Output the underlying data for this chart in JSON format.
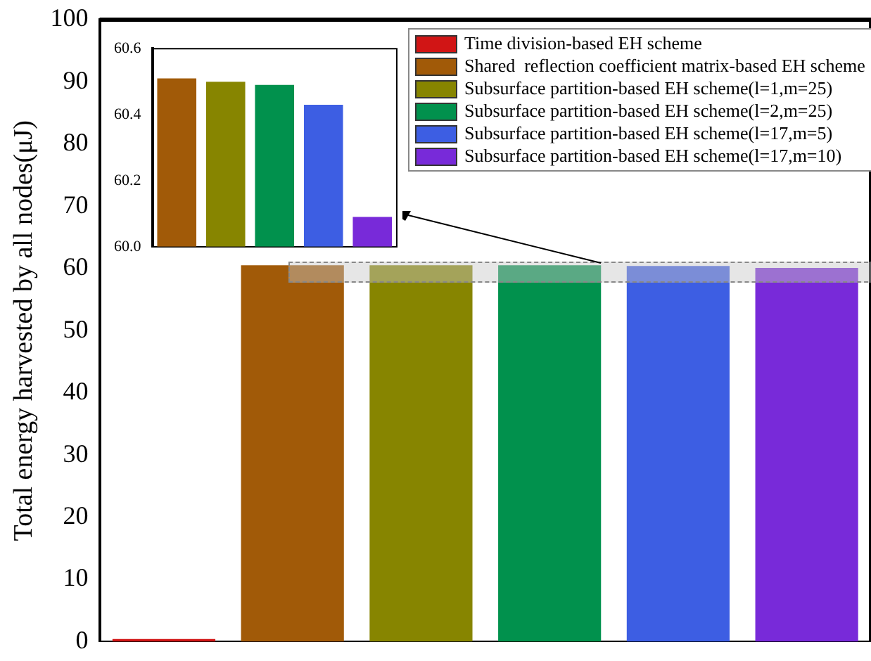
{
  "chart_data": [
    {
      "type": "bar",
      "ylabel": "Total energy harvested by all nodes(μJ)",
      "categories": [
        null,
        null,
        null,
        null,
        null,
        null
      ],
      "series": [
        {
          "name": "Time division-based EH scheme",
          "color": "#d11515",
          "values": [
            0.4,
            null,
            null,
            null,
            null,
            null
          ]
        },
        {
          "name": "Shared  reflection coefficient matrix-based EH scheme",
          "color": "#a15a08",
          "values": [
            null,
            60.5,
            null,
            null,
            null,
            null
          ]
        },
        {
          "name": "Subsurface partition-based EH scheme(l=1,m=25)",
          "color": "#878500",
          "values": [
            null,
            null,
            60.5,
            null,
            null,
            null
          ]
        },
        {
          "name": "Subsurface partition-based EH scheme(l=2,m=25)",
          "color": "#01914d",
          "values": [
            null,
            null,
            null,
            60.5,
            null,
            null
          ]
        },
        {
          "name": "Subsurface partition-based EH scheme(l=17,m=5)",
          "color": "#3d5ee3",
          "values": [
            null,
            null,
            null,
            null,
            60.4,
            null
          ]
        },
        {
          "name": "Subsurface partition-based EH scheme(l=17,m=10)",
          "color": "#782ad9",
          "values": [
            null,
            null,
            null,
            null,
            null,
            60.1
          ]
        }
      ],
      "ylim": [
        0,
        100
      ],
      "yticks": [
        0,
        10,
        20,
        30,
        40,
        50,
        60,
        70,
        80,
        90,
        100
      ],
      "legend": "top right",
      "grid": false
    },
    {
      "type": "bar",
      "categories": [
        null,
        null,
        null,
        null,
        null
      ],
      "values": [
        60.51,
        60.5,
        60.49,
        60.43,
        60.09
      ],
      "colors": [
        "#a15a08",
        "#878500",
        "#01914d",
        "#3d5ee3",
        "#782ad9"
      ],
      "ylim": [
        60,
        60.6
      ],
      "yticks": [
        {
          "value": 60,
          "label": "60.0"
        },
        {
          "value": 60.2,
          "label": "60.2"
        },
        {
          "value": 60.4,
          "label": "60.4"
        },
        {
          "value": 60.6,
          "label": "60.6"
        }
      ],
      "grid": false
    }
  ]
}
